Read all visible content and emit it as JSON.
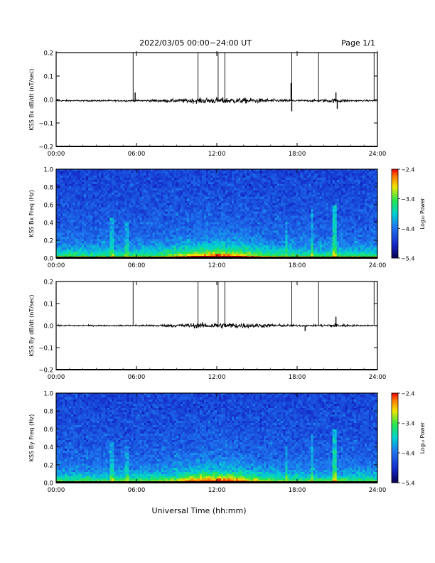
{
  "header": {
    "title": "2022/03/05  00:00−24:00 UT",
    "page": "Page 1/1"
  },
  "footer": {
    "xlabel": "Universal Time (hh:mm)"
  },
  "chart_data": [
    {
      "type": "line",
      "ylabel": "KSS Bx dB/dt (nT/sec)",
      "ylim": [
        -0.2,
        0.2
      ],
      "yticks": [
        "0.2",
        "0.1",
        "0.0",
        "−0.1",
        "−0.2"
      ],
      "xticks": [
        "00:00",
        "06:00",
        "12:00",
        "18:00",
        "24:00"
      ],
      "xlim_hours": [
        0,
        24
      ],
      "baseline": -0.005,
      "spikes": [
        {
          "t": 5.75,
          "v": 0.2
        },
        {
          "t": 10.6,
          "v": 0.2
        },
        {
          "t": 12.1,
          "v": 0.2
        },
        {
          "t": 12.6,
          "v": 0.2
        },
        {
          "t": 17.6,
          "v": 0.2
        },
        {
          "t": 19.6,
          "v": 0.2
        },
        {
          "t": 23.75,
          "v": 0.2
        }
      ],
      "peaks": [
        {
          "t": 5.9,
          "v": 0.03
        },
        {
          "t": 17.55,
          "v": 0.07
        },
        {
          "t": 17.6,
          "v": -0.05
        },
        {
          "t": 21.0,
          "v": -0.04
        },
        {
          "t": 20.9,
          "v": 0.03
        }
      ]
    },
    {
      "type": "heatmap",
      "ylabel": "KSS Bx Freq (Hz)",
      "ylim": [
        0.0,
        1.0
      ],
      "yticks": [
        "1.0",
        "0.8",
        "0.6",
        "0.4",
        "0.2",
        "0.0"
      ],
      "xticks": [
        "00:00",
        "06:00",
        "12:00",
        "18:00",
        "24:00"
      ],
      "colorbar": {
        "label": "Log₁₀ Power",
        "ticks": [
          "−2.4",
          "−3.4",
          "−4.4",
          "−5.4"
        ],
        "range": [
          -5.4,
          -2.4
        ]
      }
    },
    {
      "type": "line",
      "ylabel": "KSS By dB/dt (nT/sec)",
      "ylim": [
        -0.2,
        0.2
      ],
      "yticks": [
        "0.2",
        "0.1",
        "0.0",
        "−0.1",
        "−0.2"
      ],
      "xticks": [
        "00:00",
        "06:00",
        "12:00",
        "18:00",
        "24:00"
      ],
      "xlim_hours": [
        0,
        24
      ],
      "baseline": 0.0,
      "spikes": [
        {
          "t": 5.75,
          "v": 0.2
        },
        {
          "t": 10.6,
          "v": 0.2
        },
        {
          "t": 12.1,
          "v": 0.2
        },
        {
          "t": 12.6,
          "v": 0.2
        },
        {
          "t": 17.6,
          "v": 0.2
        },
        {
          "t": 19.6,
          "v": 0.2
        },
        {
          "t": 23.75,
          "v": 0.2
        }
      ],
      "peaks": [
        {
          "t": 20.9,
          "v": 0.04
        },
        {
          "t": 18.6,
          "v": -0.025
        }
      ]
    },
    {
      "type": "heatmap",
      "ylabel": "KSS By Freq (Hz)",
      "ylim": [
        0.0,
        1.0
      ],
      "yticks": [
        "1.0",
        "0.8",
        "0.6",
        "0.4",
        "0.2",
        "0.0"
      ],
      "xticks": [
        "00:00",
        "06:00",
        "12:00",
        "18:00",
        "24:00"
      ],
      "colorbar": {
        "label": "Log₁₀ Power",
        "ticks": [
          "−2.4",
          "−3.4",
          "−4.4",
          "−5.4"
        ],
        "range": [
          -5.4,
          -2.4
        ]
      }
    }
  ]
}
